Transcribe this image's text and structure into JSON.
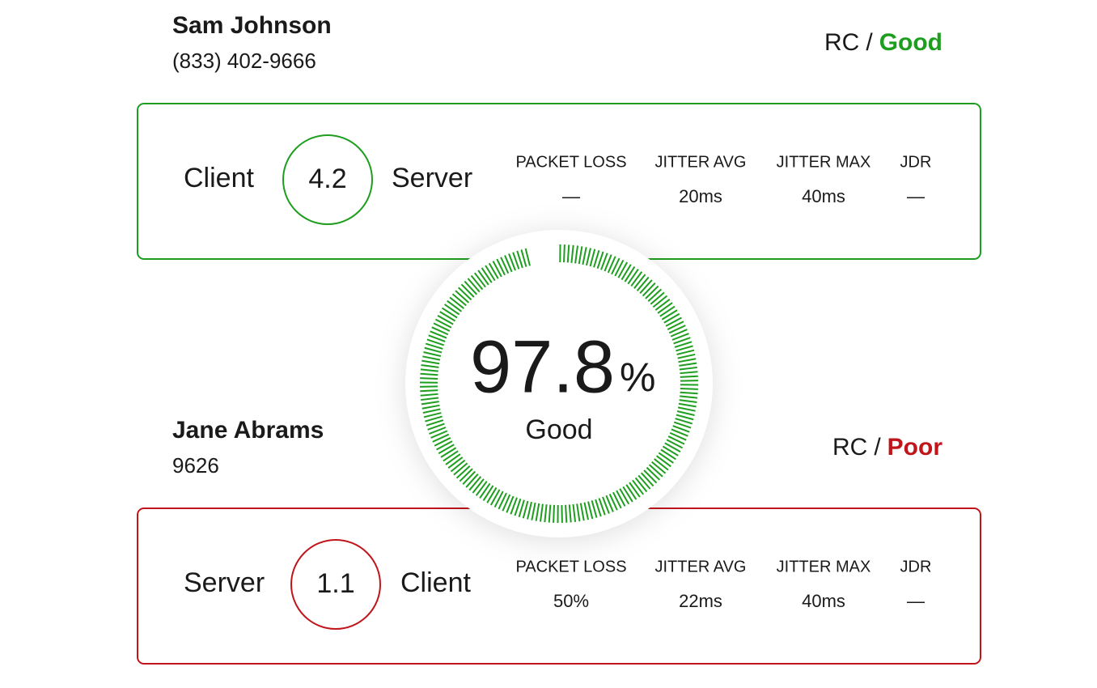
{
  "gauge": {
    "value": "97.8",
    "unit": "%",
    "status": "Good",
    "color": "#1e9e1e"
  },
  "calls": [
    {
      "name": "Sam Johnson",
      "phone": "(833) 402-9666",
      "rc": "RC",
      "separator": "/",
      "status": "Good",
      "color": "#1e9e1e",
      "left": "Client",
      "score": "4.2",
      "right": "Server",
      "metrics": [
        {
          "label": "PACKET LOSS",
          "value": "—"
        },
        {
          "label": "JITTER AVG",
          "value": "20ms"
        },
        {
          "label": "JITTER MAX",
          "value": "40ms"
        },
        {
          "label": "JDR",
          "value": "—"
        }
      ]
    },
    {
      "name": "Jane Abrams",
      "phone": "9626",
      "rc": "RC",
      "separator": "/",
      "status": "Poor",
      "color": "#c0151b",
      "left": "Server",
      "score": "1.1",
      "right": "Client",
      "metrics": [
        {
          "label": "PACKET LOSS",
          "value": "50%"
        },
        {
          "label": "JITTER AVG",
          "value": "22ms"
        },
        {
          "label": "JITTER MAX",
          "value": "40ms"
        },
        {
          "label": "JDR",
          "value": "—"
        }
      ]
    }
  ]
}
